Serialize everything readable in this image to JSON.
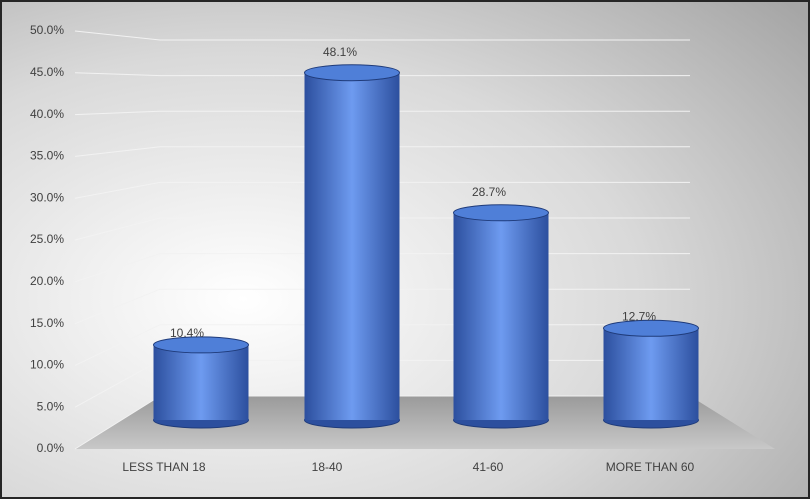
{
  "chart_data": {
    "type": "bar",
    "categories": [
      "LESS THAN 18",
      "18-40",
      "41-60",
      "MORE THAN 60"
    ],
    "values": [
      10.4,
      48.1,
      28.7,
      12.7
    ],
    "value_labels": [
      "10.4%",
      "48.1%",
      "28.7%",
      "12.7%"
    ],
    "color": "#4f7fd8",
    "ylim": [
      0,
      50
    ],
    "yticks": [
      {
        "value": 0,
        "label": "0.0%"
      },
      {
        "value": 5,
        "label": "5.0%"
      },
      {
        "value": 10,
        "label": "10.0%"
      },
      {
        "value": 15,
        "label": "15.0%"
      },
      {
        "value": 20,
        "label": "20.0%"
      },
      {
        "value": 25,
        "label": "25.0%"
      },
      {
        "value": 30,
        "label": "30.0%"
      },
      {
        "value": 35,
        "label": "35.0%"
      },
      {
        "value": 40,
        "label": "40.0%"
      },
      {
        "value": 45,
        "label": "45.0%"
      },
      {
        "value": 50,
        "label": "50.0%"
      }
    ],
    "grid": true
  }
}
